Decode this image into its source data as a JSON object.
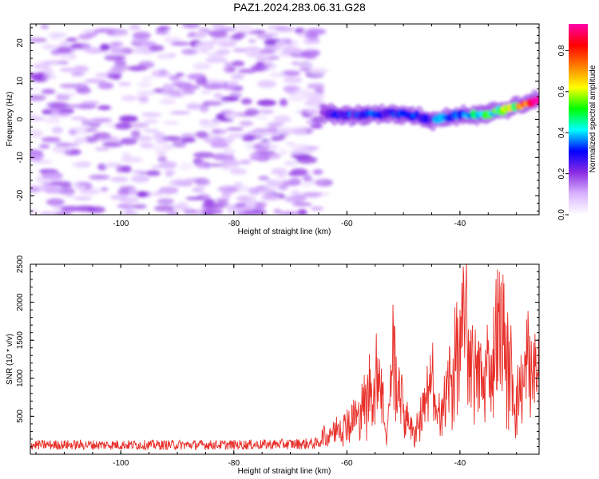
{
  "title": "PAZ1.2024.283.06.31.G28",
  "chart_data": [
    {
      "type": "heatmap",
      "xlabel": "Height of straight line (km)",
      "ylabel": "Frequency (Hz)",
      "xlim": [
        -116,
        -26
      ],
      "ylim": [
        -25,
        25
      ],
      "xticks": [
        -100,
        -80,
        -60,
        -40
      ],
      "yticks": [
        20,
        10,
        0,
        -10,
        -20
      ],
      "grid": false,
      "colorbar": {
        "label": "Normalized spectral amplitude",
        "range": [
          0,
          0.93
        ],
        "ticks": [
          "0.0",
          "0.2",
          "0.4",
          "0.6",
          "0.8"
        ],
        "colormap": [
          "#ffffff",
          "#d9b3ff",
          "#8a2be2",
          "#0000ff",
          "#00ffff",
          "#00ff00",
          "#ffff00",
          "#ff8000",
          "#ff0000",
          "#ff00aa"
        ]
      },
      "noise_region": {
        "x_range": [
          -116,
          -64
        ],
        "freq_range": [
          -25,
          25
        ],
        "amplitude": 0.15
      },
      "signal_ridge": [
        {
          "height_km": -64,
          "freq_hz": 1.5,
          "amplitude": 0.25
        },
        {
          "height_km": -60,
          "freq_hz": 1.0,
          "amplitude": 0.3
        },
        {
          "height_km": -55,
          "freq_hz": 1.5,
          "amplitude": 0.3
        },
        {
          "height_km": -50,
          "freq_hz": 1.5,
          "amplitude": 0.28
        },
        {
          "height_km": -45,
          "freq_hz": 0.0,
          "amplitude": 0.3
        },
        {
          "height_km": -40,
          "freq_hz": 1.0,
          "amplitude": 0.35
        },
        {
          "height_km": -35,
          "freq_hz": 1.5,
          "amplitude": 0.45
        },
        {
          "height_km": -30,
          "freq_hz": 3.5,
          "amplitude": 0.6
        },
        {
          "height_km": -26,
          "freq_hz": 5.0,
          "amplitude": 0.9
        }
      ]
    },
    {
      "type": "line",
      "xlabel": "Height of straight line (km)",
      "ylabel": "SNR (10 * v/v)",
      "xlim": [
        -116,
        -26
      ],
      "ylim": [
        0,
        2500
      ],
      "xticks": [
        -100,
        -80,
        -60,
        -40
      ],
      "yticks": [
        500,
        1000,
        1500,
        2000,
        2500
      ],
      "grid": false,
      "color": "#e8302a",
      "series": [
        {
          "x": [
            -116,
            -110,
            -100,
            -90,
            -80,
            -70,
            -65,
            -64,
            -62,
            -60,
            -58,
            -56,
            -54,
            -53,
            -52,
            -50,
            -48,
            -46,
            -45,
            -44,
            -42,
            -40,
            -39,
            -38,
            -36,
            -34,
            -33,
            -32,
            -30,
            -28,
            -26
          ],
          "values": [
            130,
            130,
            130,
            130,
            130,
            140,
            150,
            300,
            450,
            550,
            700,
            1100,
            1500,
            200,
            1800,
            800,
            350,
            1000,
            1300,
            600,
            1200,
            1900,
            2500,
            1700,
            1300,
            1750,
            2400,
            1900,
            900,
            1600,
            1350
          ]
        }
      ]
    }
  ]
}
